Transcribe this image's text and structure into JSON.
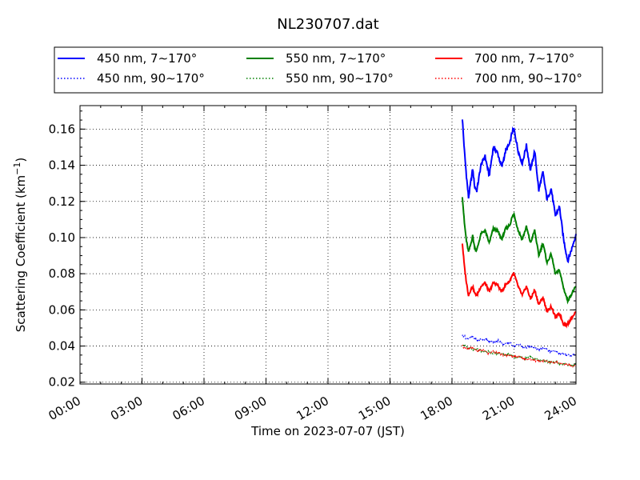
{
  "chart_data": {
    "type": "line",
    "title": "NL230707.dat",
    "xlabel": "Time on 2023-07-07 (JST)",
    "ylabel_main": "Scattering Coefficient (km",
    "ylabel_sup": "−1",
    "ylabel_close": ")",
    "x_unit": "hours",
    "xlim": [
      0,
      24
    ],
    "ylim": [
      0.019,
      0.173
    ],
    "grid": true,
    "legend_position": "top, outside plot, 3 columns",
    "x_ticks": [
      {
        "value": 0,
        "label": "00:00"
      },
      {
        "value": 3,
        "label": "03:00"
      },
      {
        "value": 6,
        "label": "06:00"
      },
      {
        "value": 9,
        "label": "09:00"
      },
      {
        "value": 12,
        "label": "12:00"
      },
      {
        "value": 15,
        "label": "15:00"
      },
      {
        "value": 18,
        "label": "18:00"
      },
      {
        "value": 21,
        "label": "21:00"
      },
      {
        "value": 24,
        "label": "24:00"
      }
    ],
    "y_ticks": [
      {
        "value": 0.02,
        "label": "0.02"
      },
      {
        "value": 0.04,
        "label": "0.04"
      },
      {
        "value": 0.06,
        "label": "0.06"
      },
      {
        "value": 0.08,
        "label": "0.08"
      },
      {
        "value": 0.1,
        "label": "0.10"
      },
      {
        "value": 0.12,
        "label": "0.12"
      },
      {
        "value": 0.14,
        "label": "0.14"
      },
      {
        "value": 0.16,
        "label": "0.16"
      }
    ],
    "series": [
      {
        "name": "450 nm, 7∼170°",
        "color": "#0000ff",
        "style": "solid",
        "x": [
          18.5,
          18.6,
          18.7,
          18.8,
          18.9,
          19.0,
          19.1,
          19.2,
          19.4,
          19.6,
          19.8,
          20.0,
          20.2,
          20.4,
          20.6,
          20.8,
          20.9,
          21.0,
          21.2,
          21.4,
          21.6,
          21.8,
          22.0,
          22.2,
          22.4,
          22.6,
          22.8,
          23.0,
          23.2,
          23.4,
          23.6,
          23.8,
          24.0
        ],
        "y": [
          0.166,
          0.148,
          0.134,
          0.122,
          0.13,
          0.138,
          0.128,
          0.126,
          0.14,
          0.145,
          0.134,
          0.15,
          0.147,
          0.139,
          0.148,
          0.152,
          0.158,
          0.16,
          0.148,
          0.141,
          0.151,
          0.137,
          0.148,
          0.126,
          0.136,
          0.121,
          0.127,
          0.112,
          0.117,
          0.099,
          0.087,
          0.094,
          0.102
        ]
      },
      {
        "name": "550 nm, 7∼170°",
        "color": "#008000",
        "style": "solid",
        "x": [
          18.5,
          18.6,
          18.7,
          18.8,
          18.9,
          19.0,
          19.1,
          19.2,
          19.4,
          19.6,
          19.8,
          20.0,
          20.2,
          20.4,
          20.6,
          20.8,
          20.9,
          21.0,
          21.2,
          21.4,
          21.6,
          21.8,
          22.0,
          22.2,
          22.4,
          22.6,
          22.8,
          23.0,
          23.2,
          23.4,
          23.6,
          23.8,
          24.0
        ],
        "y": [
          0.123,
          0.108,
          0.098,
          0.092,
          0.096,
          0.101,
          0.094,
          0.093,
          0.102,
          0.104,
          0.097,
          0.105,
          0.104,
          0.099,
          0.105,
          0.107,
          0.111,
          0.113,
          0.104,
          0.099,
          0.106,
          0.097,
          0.104,
          0.09,
          0.097,
          0.086,
          0.091,
          0.08,
          0.082,
          0.072,
          0.065,
          0.069,
          0.073
        ]
      },
      {
        "name": "700 nm, 7∼170°",
        "color": "#ff0000",
        "style": "solid",
        "x": [
          18.5,
          18.6,
          18.7,
          18.8,
          18.9,
          19.0,
          19.1,
          19.2,
          19.4,
          19.6,
          19.8,
          20.0,
          20.2,
          20.4,
          20.6,
          20.8,
          20.9,
          21.0,
          21.2,
          21.4,
          21.6,
          21.8,
          22.0,
          22.2,
          22.4,
          22.6,
          22.8,
          23.0,
          23.2,
          23.4,
          23.6,
          23.8,
          24.0
        ],
        "y": [
          0.097,
          0.084,
          0.075,
          0.068,
          0.071,
          0.073,
          0.069,
          0.068,
          0.073,
          0.075,
          0.07,
          0.075,
          0.074,
          0.07,
          0.074,
          0.076,
          0.079,
          0.08,
          0.073,
          0.068,
          0.073,
          0.066,
          0.071,
          0.063,
          0.067,
          0.059,
          0.062,
          0.056,
          0.058,
          0.052,
          0.052,
          0.056,
          0.059
        ]
      },
      {
        "name": "450 nm, 90∼170°",
        "color": "#0000ff",
        "style": "dotted",
        "x": [
          18.5,
          18.75,
          19.0,
          19.25,
          19.5,
          19.75,
          20.0,
          20.25,
          20.5,
          20.75,
          21.0,
          21.25,
          21.5,
          21.75,
          22.0,
          22.25,
          22.5,
          22.75,
          23.0,
          23.25,
          23.5,
          23.75,
          24.0
        ],
        "y": [
          0.046,
          0.044,
          0.045,
          0.043,
          0.044,
          0.043,
          0.042,
          0.043,
          0.041,
          0.042,
          0.04,
          0.041,
          0.039,
          0.04,
          0.039,
          0.038,
          0.039,
          0.037,
          0.037,
          0.036,
          0.035,
          0.035,
          0.035
        ]
      },
      {
        "name": "550 nm, 90∼170°",
        "color": "#008000",
        "style": "dotted",
        "x": [
          18.5,
          18.75,
          19.0,
          19.25,
          19.5,
          19.75,
          20.0,
          20.25,
          20.5,
          20.75,
          21.0,
          21.25,
          21.5,
          21.75,
          22.0,
          22.25,
          22.5,
          22.75,
          23.0,
          23.25,
          23.5,
          23.75,
          24.0
        ],
        "y": [
          0.041,
          0.039,
          0.038,
          0.038,
          0.037,
          0.037,
          0.036,
          0.036,
          0.035,
          0.036,
          0.034,
          0.034,
          0.033,
          0.034,
          0.033,
          0.032,
          0.032,
          0.031,
          0.031,
          0.03,
          0.03,
          0.029,
          0.03
        ]
      },
      {
        "name": "700 nm, 90∼170°",
        "color": "#ff0000",
        "style": "dotted",
        "x": [
          18.5,
          18.75,
          19.0,
          19.25,
          19.5,
          19.75,
          20.0,
          20.25,
          20.5,
          20.75,
          21.0,
          21.25,
          21.5,
          21.75,
          22.0,
          22.25,
          22.5,
          22.75,
          23.0,
          23.25,
          23.5,
          23.75,
          24.0
        ],
        "y": [
          0.04,
          0.038,
          0.039,
          0.037,
          0.038,
          0.036,
          0.037,
          0.036,
          0.035,
          0.035,
          0.034,
          0.034,
          0.033,
          0.033,
          0.032,
          0.032,
          0.032,
          0.031,
          0.031,
          0.03,
          0.03,
          0.029,
          0.029
        ]
      }
    ],
    "legend_order": [
      0,
      1,
      2,
      3,
      4,
      5
    ]
  }
}
